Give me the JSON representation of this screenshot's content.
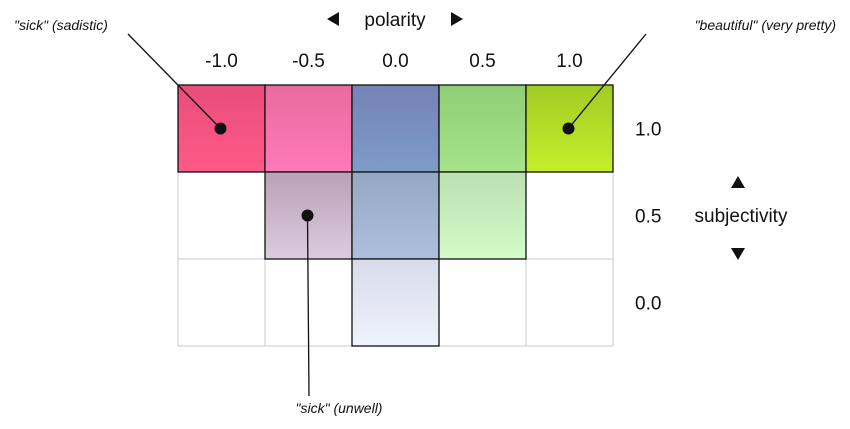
{
  "polarity": {
    "label": "polarity",
    "ticks": [
      "-1.0",
      "-0.5",
      "0.0",
      "0.5",
      "1.0"
    ]
  },
  "subjectivity": {
    "label": "subjectivity",
    "ticks": [
      "1.0",
      "0.5",
      "0.0"
    ]
  },
  "cells": [
    {
      "row": 0,
      "col": 0,
      "top": "#e94d7a",
      "bottom": "#ff5a88",
      "border": true
    },
    {
      "row": 0,
      "col": 1,
      "top": "#e86b9e",
      "bottom": "#ff7ab8",
      "border": true
    },
    {
      "row": 0,
      "col": 2,
      "top": "#7483b5",
      "bottom": "#7e9cc9",
      "border": true
    },
    {
      "row": 0,
      "col": 3,
      "top": "#8fcd76",
      "bottom": "#a6e38b",
      "border": true
    },
    {
      "row": 0,
      "col": 4,
      "top": "#a1cb23",
      "bottom": "#c4ef2b",
      "border": true
    },
    {
      "row": 1,
      "col": 1,
      "top": "#b9a2b6",
      "bottom": "#dccbe0",
      "border": true
    },
    {
      "row": 1,
      "col": 2,
      "top": "#93a8c2",
      "bottom": "#aebfdd",
      "border": true
    },
    {
      "row": 1,
      "col": 3,
      "top": "#bcdfb0",
      "bottom": "#d4fbc9",
      "border": true
    },
    {
      "row": 2,
      "col": 2,
      "top": "#d7dcea",
      "bottom": "#eef3fd",
      "border": true
    }
  ],
  "annotations": [
    {
      "id": "sick-sadistic",
      "text": "\"sick\" (sadistic)",
      "row": 0,
      "col": 0
    },
    {
      "id": "beautiful",
      "text": "\"beautiful\" (very pretty)",
      "row": 0,
      "col": 4
    },
    {
      "id": "sick-unwell",
      "text": "\"sick\" (unwell)",
      "row": 1,
      "col": 1
    }
  ],
  "icons": {
    "polarity_left": "triangle-left-icon",
    "polarity_right": "triangle-right-icon",
    "subjectivity_up": "triangle-up-icon",
    "subjectivity_down": "triangle-down-icon"
  }
}
